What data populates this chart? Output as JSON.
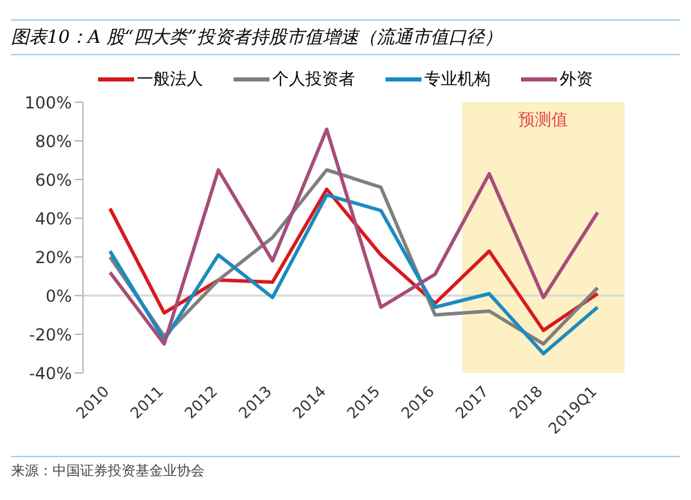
{
  "chart_data": {
    "type": "line",
    "title": "图表10：A 股“四大类”投资者持股市值增速（流通市值口径）",
    "categories": [
      "2010",
      "2011",
      "2012",
      "2013",
      "2014",
      "2015",
      "2016",
      "2017",
      "2018",
      "2019Q1"
    ],
    "series": [
      {
        "name": "一般法人",
        "color": "#d7191c",
        "values": [
          45,
          -9,
          8,
          7,
          55,
          21,
          -4,
          23,
          -18,
          1
        ]
      },
      {
        "name": "个人投资者",
        "color": "#7f7f7f",
        "values": [
          20,
          -21,
          8,
          30,
          65,
          56,
          -10,
          -8,
          -25,
          4
        ]
      },
      {
        "name": "专业机构",
        "color": "#1a8bbf",
        "values": [
          23,
          -23,
          21,
          -1,
          52,
          44,
          -6,
          1,
          -30,
          -6
        ]
      },
      {
        "name": "外资",
        "color": "#a64d79",
        "values": [
          12,
          -25,
          65,
          18,
          86,
          -6,
          11,
          63,
          -1,
          43
        ]
      }
    ],
    "ylim": [
      -40,
      100
    ],
    "yticks": [
      {
        "value": -40,
        "label": "-40%"
      },
      {
        "value": -20,
        "label": "-20%"
      },
      {
        "value": 0,
        "label": "0%"
      },
      {
        "value": 20,
        "label": "20%"
      },
      {
        "value": 40,
        "label": "40%"
      },
      {
        "value": 60,
        "label": "60%"
      },
      {
        "value": 80,
        "label": "80%"
      },
      {
        "value": 100,
        "label": "100%"
      }
    ],
    "grid": false,
    "legend": "top",
    "marker": "none",
    "line_style": "solid",
    "bands": [
      {
        "axis": "x",
        "from": "2017",
        "to": "2019Q1",
        "label": "预测值",
        "color": "#fdf0c4"
      }
    ],
    "ref_lines": [
      {
        "axis": "y",
        "value": 0,
        "color": "#d9d9d9"
      }
    ],
    "annotations": [
      "来源：中国证券投资基金业协会"
    ]
  }
}
